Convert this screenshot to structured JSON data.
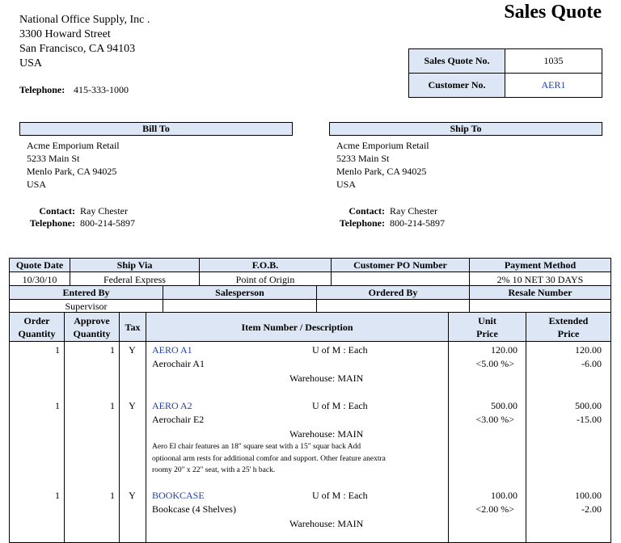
{
  "title": "Sales Quote",
  "company": {
    "lines": [
      "National Office Supply, Inc .",
      "3300  Howard Street",
      "San Francisco, CA 94103",
      "USA"
    ],
    "telephone_label": "Telephone:",
    "telephone": "415-333-1000"
  },
  "quote_info": {
    "rows": [
      [
        "Sales Quote No.",
        "1035"
      ],
      [
        "Customer No.",
        "AER1"
      ]
    ]
  },
  "bill_to": {
    "header": "Bill To",
    "lines": [
      "Acme Emporium Retail",
      "5233  Main St",
      "Menlo Park, CA  94025",
      "USA"
    ],
    "contact_label": "Contact:",
    "contact": "Ray Chester",
    "telephone_label": "Telephone:",
    "telephone": "800-214-5897"
  },
  "ship_to": {
    "header": "Ship To",
    "lines": [
      "Acme Emporium Retail",
      "5233  Main St",
      "Menlo Park, CA  94025",
      "USA"
    ],
    "contact_label": "Contact:",
    "contact": "Ray Chester",
    "telephone_label": "Telephone:",
    "telephone": "800-214-5897"
  },
  "order_table": {
    "headers": [
      "Quote Date",
      "Ship Via",
      "F.O.B.",
      "Customer PO Number",
      "Payment Method"
    ],
    "values": [
      "10/30/10",
      "Federal Express",
      "Point of Origin",
      null,
      "2% 10 NET 30 DAYS"
    ]
  },
  "entry_table": {
    "headers": [
      "Entered By",
      "Salesperson",
      "Ordered By",
      "Resale Number"
    ],
    "values": [
      "Supervisor",
      null,
      null,
      null
    ]
  },
  "items_table": {
    "headers": [
      "Order Quantity",
      "Approve Quantity",
      "Tax",
      "Item Number / Description",
      "Unit Price",
      "Extended Price"
    ],
    "rows": [
      {
        "order_qty": "1",
        "approve_qty": "1",
        "tax": "Y",
        "item": "AERO A1",
        "uom": "U of M : Each",
        "description": "Aerochair A1",
        "warehouse": "Warehouse: MAIN",
        "unit_price": "120.00",
        "discount": "<5.00 %>",
        "extended_price": "120.00",
        "discount_amount": "-6.00",
        "notes": []
      },
      {
        "order_qty": "1",
        "approve_qty": "1",
        "tax": "Y",
        "item": "AERO A2",
        "uom": "U of M : Each",
        "description": "Aerochair E2",
        "warehouse": "Warehouse: MAIN",
        "unit_price": "500.00",
        "discount": "<3.00 %>",
        "extended_price": "500.00",
        "discount_amount": "-15.00",
        "notes": [
          "Aero El chair features an 18\" square seat with a 15\" squar back  Add",
          "optioonal arm rests for additional comfor and support.  Other feature anextra",
          "roomy 20\" x 22\" seat, with a 25' h back."
        ]
      },
      {
        "order_qty": "1",
        "approve_qty": "1",
        "tax": "Y",
        "item": "BOOKCASE",
        "uom": "U of M : Each",
        "description": "Bookcase (4 Shelves)",
        "warehouse": "Warehouse: MAIN",
        "unit_price": "100.00",
        "discount": "<2.00 %>",
        "extended_price": "100.00",
        "discount_amount": "-2.00",
        "notes": []
      }
    ]
  }
}
